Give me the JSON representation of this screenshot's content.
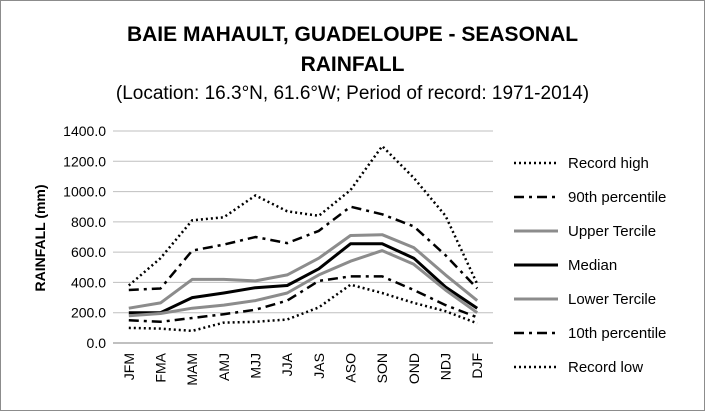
{
  "chart_data": {
    "type": "line",
    "title_lines": [
      "BAIE MAHAULT, GUADELOUPE - SEASONAL",
      "RAINFALL"
    ],
    "subtitle": "(Location: 16.3°N, 61.6°W; Period of record: 1971-2014)",
    "xlabel": "",
    "ylabel": "RAINFALL (mm)",
    "ylim": [
      0,
      1400
    ],
    "ytick_step": 200,
    "ytick_labels": [
      "0.0",
      "200.0",
      "400.0",
      "600.0",
      "800.0",
      "1000.0",
      "1200.0",
      "1400.0"
    ],
    "grid": true,
    "legend_position": "right",
    "categories": [
      "JFM",
      "FMA",
      "MAM",
      "AMJ",
      "MJJ",
      "JJA",
      "JAS",
      "ASO",
      "SON",
      "OND",
      "NDJ",
      "DJF"
    ],
    "series": [
      {
        "name": "Record high",
        "color": "#000000",
        "style": "dotted",
        "values": [
          380,
          560,
          810,
          830,
          975,
          870,
          840,
          1010,
          1300,
          1090,
          840,
          390
        ]
      },
      {
        "name": "90th percentile",
        "color": "#000000",
        "style": "dashdot",
        "values": [
          350,
          360,
          610,
          650,
          700,
          660,
          740,
          900,
          850,
          770,
          580,
          360
        ]
      },
      {
        "name": "Upper Tercile",
        "color": "#8c8c8c",
        "style": "solid",
        "values": [
          230,
          265,
          420,
          420,
          410,
          450,
          560,
          710,
          715,
          630,
          450,
          280
        ]
      },
      {
        "name": "Median",
        "color": "#000000",
        "style": "solid",
        "values": [
          200,
          200,
          300,
          330,
          365,
          380,
          490,
          655,
          655,
          560,
          370,
          230
        ]
      },
      {
        "name": "Lower Tercile",
        "color": "#8c8c8c",
        "style": "solid",
        "values": [
          180,
          195,
          230,
          250,
          280,
          330,
          450,
          540,
          610,
          520,
          350,
          200
        ]
      },
      {
        "name": "10th percentile",
        "color": "#000000",
        "style": "dashdot",
        "values": [
          150,
          140,
          165,
          190,
          220,
          280,
          410,
          440,
          440,
          350,
          250,
          170
        ]
      },
      {
        "name": "Record low",
        "color": "#000000",
        "style": "dotted",
        "values": [
          100,
          95,
          80,
          135,
          140,
          155,
          235,
          385,
          330,
          265,
          210,
          130
        ]
      }
    ]
  }
}
